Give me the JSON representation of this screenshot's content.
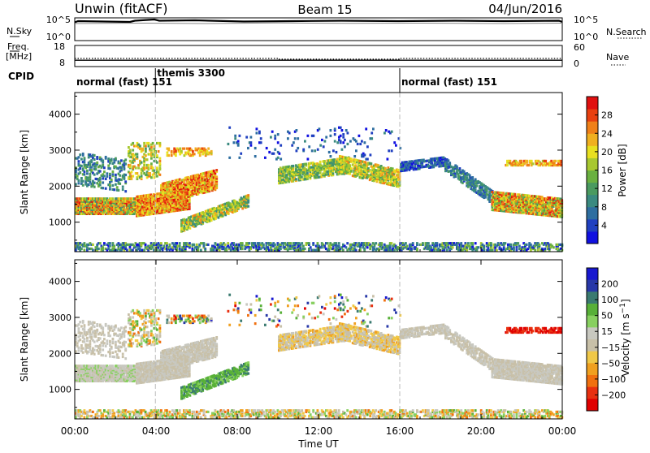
{
  "header": {
    "title": "Unwin (fitACF)",
    "beam": "Beam 15",
    "date": "04/Jun/2016"
  },
  "nsky_panel": {
    "label": "N.Sky",
    "right_label": "N.Search",
    "left_ticks": [
      "10^5",
      "10^0"
    ],
    "right_ticks": [
      "10^5",
      "10^0"
    ]
  },
  "freq_panel": {
    "label_line1": "Freq.",
    "label_line2": "[MHz]",
    "right_label": "Nave",
    "left_ticks": [
      "18",
      "8"
    ],
    "right_ticks": [
      "60",
      "0"
    ],
    "freq_level_mhz": 11,
    "nave_segments": [
      {
        "start_h": 0,
        "end_h": 10,
        "nave": 23
      },
      {
        "start_h": 10,
        "end_h": 16,
        "nave": 21
      },
      {
        "start_h": 16,
        "end_h": 24,
        "nave": 23
      }
    ]
  },
  "cpid": {
    "label": "CPID",
    "modes": [
      {
        "text": "normal (fast) 151",
        "start_h": 0
      },
      {
        "text": "themis 3300",
        "start_h": 3.97
      },
      {
        "text": "normal (fast) 151",
        "start_h": 16
      }
    ]
  },
  "colors": {
    "power": [
      "#1010e0",
      "#2040c0",
      "#2e6ea0",
      "#3a8a80",
      "#4a9a60",
      "#6ab040",
      "#a8c830",
      "#e8e020",
      "#f0b020",
      "#f08018",
      "#e84010",
      "#e01010"
    ],
    "velocity": [
      "#1818d0",
      "#2838a8",
      "#3a7a70",
      "#58b038",
      "#88d060",
      "#c8c8c0",
      "#c8c0a8",
      "#f0c848",
      "#f0a020",
      "#f07010",
      "#e83010",
      "#e00000"
    ]
  },
  "chart_data": [
    {
      "type": "heatmap",
      "name": "power",
      "ylabel": "Slant Range [km]",
      "x_range_h": [
        0,
        24
      ],
      "ylim": [
        180,
        4600
      ],
      "yticks": [
        1000,
        2000,
        3000,
        4000
      ],
      "colorbar": {
        "label": "Power [dB]",
        "range": [
          0,
          32
        ],
        "ticks": [
          4,
          8,
          12,
          16,
          20,
          24,
          28
        ]
      }
    },
    {
      "type": "heatmap",
      "name": "velocity",
      "ylabel": "Slant Range [km]",
      "xlabel": "Time UT",
      "x_range_h": [
        0,
        24
      ],
      "xticks": [
        "00:00",
        "04:00",
        "08:00",
        "12:00",
        "16:00",
        "20:00",
        "00:00"
      ],
      "ylim": [
        180,
        4600
      ],
      "yticks": [
        1000,
        2000,
        3000,
        4000
      ],
      "colorbar": {
        "label": "Velocity [m s^-1]",
        "ticks": [
          "200",
          "100",
          "50",
          "15",
          "-15",
          "-50",
          "-100",
          "-200"
        ]
      }
    }
  ]
}
